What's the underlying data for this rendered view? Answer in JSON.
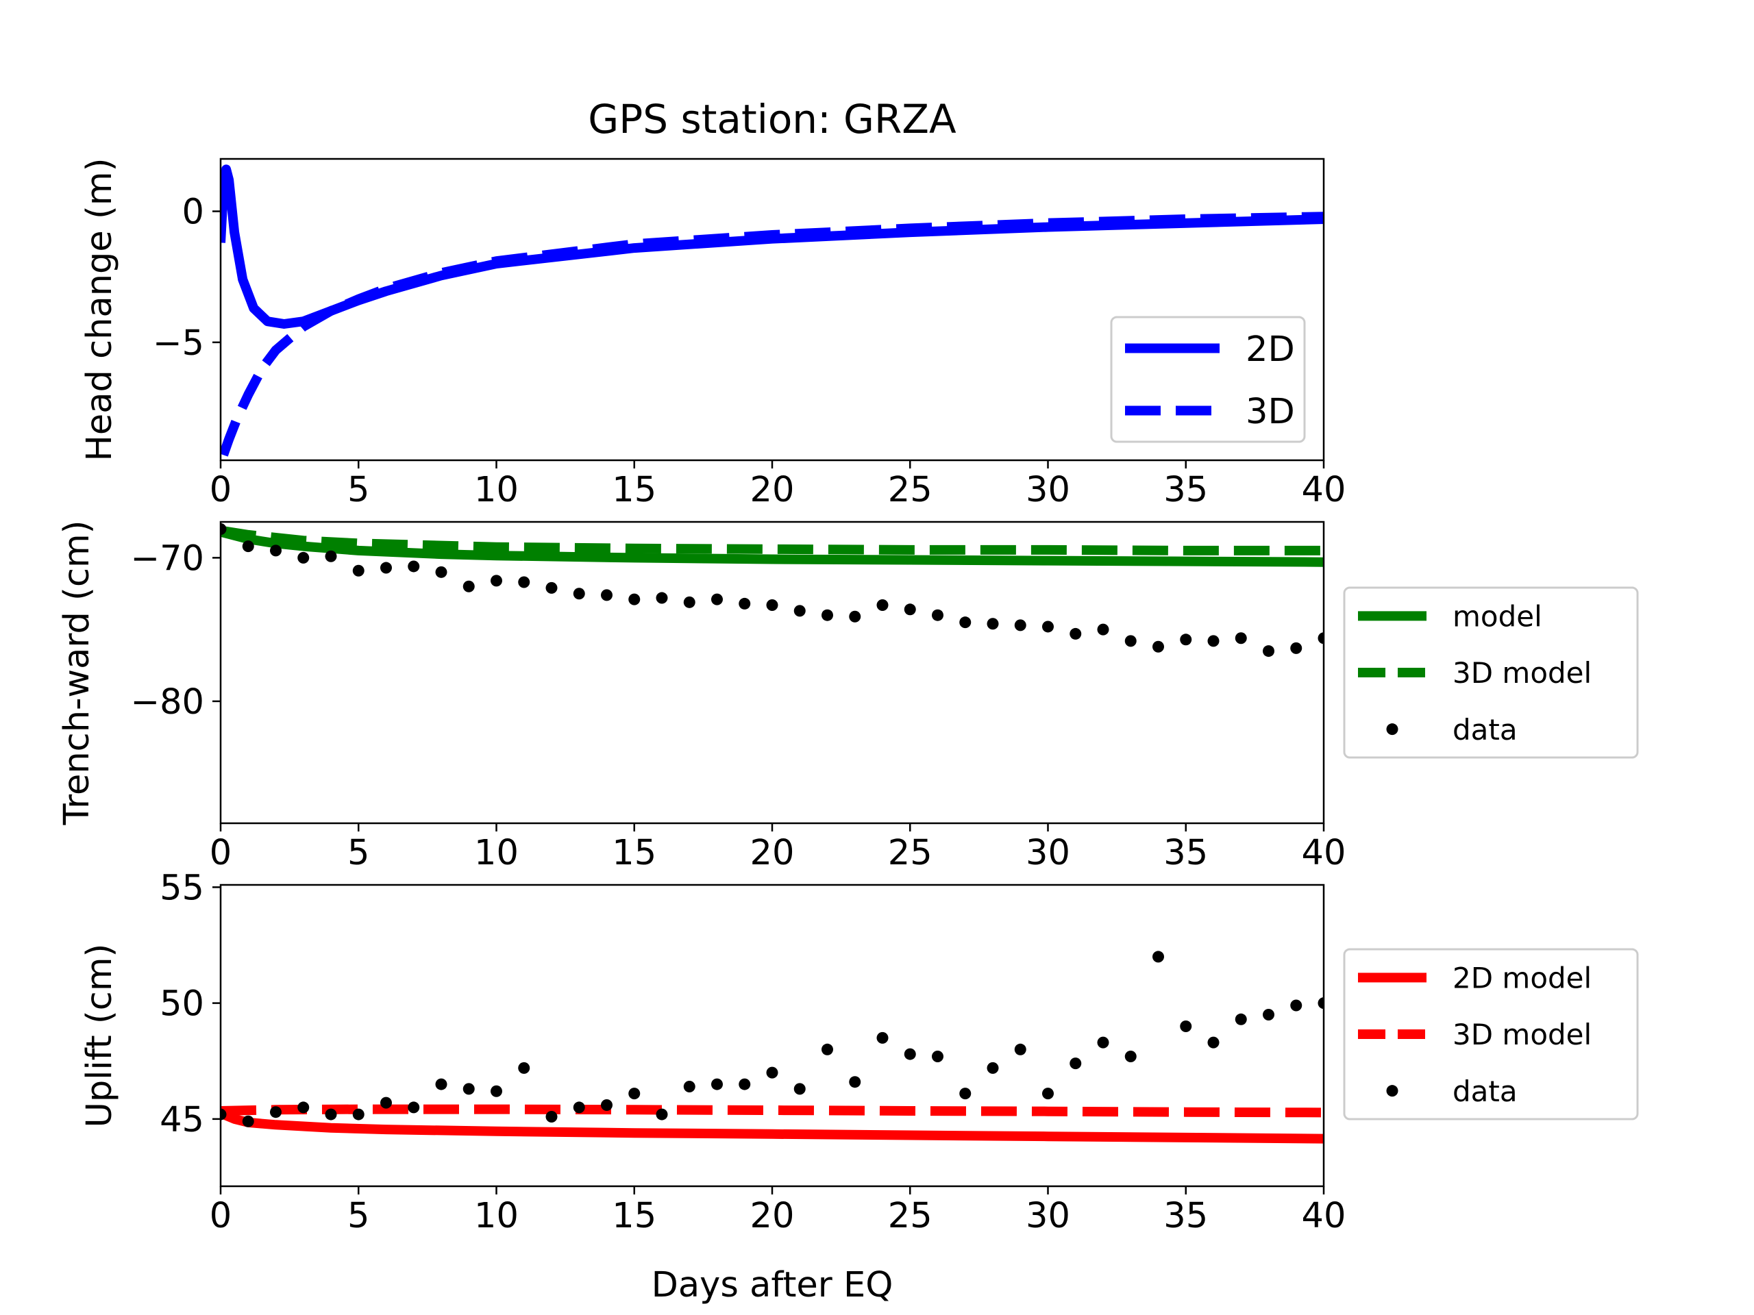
{
  "figure": {
    "title": "GPS station: GRZA",
    "xlabel": "Days after EQ"
  },
  "chart_data": [
    {
      "type": "line",
      "title": "GPS station: GRZA",
      "ylabel": "Head change (m)",
      "xlim": [
        0,
        40
      ],
      "ylim": [
        -9.5,
        2
      ],
      "x_ticks": [
        0,
        5,
        10,
        15,
        20,
        25,
        30,
        35,
        40
      ],
      "y_ticks": [
        0,
        -5
      ],
      "y_tick_labels": [
        "0",
        "−5"
      ],
      "legend_position": "lower-right",
      "series": [
        {
          "name": "2D",
          "color": "#0000ff",
          "style": "solid",
          "points": [
            [
              0,
              -1.2
            ],
            [
              0.1,
              0.8
            ],
            [
              0.2,
              1.6
            ],
            [
              0.3,
              1.2
            ],
            [
              0.5,
              -0.8
            ],
            [
              0.8,
              -2.6
            ],
            [
              1.2,
              -3.7
            ],
            [
              1.7,
              -4.2
            ],
            [
              2.3,
              -4.3
            ],
            [
              3,
              -4.2
            ],
            [
              4,
              -3.8
            ],
            [
              5,
              -3.4
            ],
            [
              6,
              -3.05
            ],
            [
              8,
              -2.45
            ],
            [
              10,
              -2.0
            ],
            [
              15,
              -1.4
            ],
            [
              20,
              -1.05
            ],
            [
              25,
              -0.8
            ],
            [
              30,
              -0.6
            ],
            [
              35,
              -0.45
            ],
            [
              40,
              -0.3
            ]
          ]
        },
        {
          "name": "3D",
          "color": "#0000ff",
          "style": "dashed",
          "points": [
            [
              0.1,
              -9.3
            ],
            [
              0.3,
              -8.7
            ],
            [
              0.6,
              -7.9
            ],
            [
              1,
              -7.0
            ],
            [
              1.5,
              -6.0
            ],
            [
              2,
              -5.3
            ],
            [
              3,
              -4.4
            ],
            [
              4,
              -3.8
            ],
            [
              5,
              -3.35
            ],
            [
              6,
              -2.95
            ],
            [
              8,
              -2.35
            ],
            [
              10,
              -1.9
            ],
            [
              15,
              -1.25
            ],
            [
              20,
              -0.9
            ],
            [
              25,
              -0.65
            ],
            [
              30,
              -0.45
            ],
            [
              35,
              -0.3
            ],
            [
              40,
              -0.2
            ]
          ]
        }
      ]
    },
    {
      "type": "line",
      "ylabel": "Trench-ward (cm)",
      "xlim": [
        0,
        40
      ],
      "ylim": [
        -88.5,
        -67.5
      ],
      "x_ticks": [
        0,
        5,
        10,
        15,
        20,
        25,
        30,
        35,
        40
      ],
      "y_ticks": [
        -70,
        -80
      ],
      "y_tick_labels": [
        "−70",
        "−80"
      ],
      "legend_position": "outside-right",
      "series": [
        {
          "name": "model",
          "color": "#008000",
          "style": "solid",
          "points": [
            [
              0,
              -68.2
            ],
            [
              1,
              -68.7
            ],
            [
              2,
              -69.0
            ],
            [
              3,
              -69.2
            ],
            [
              5,
              -69.5
            ],
            [
              8,
              -69.75
            ],
            [
              10,
              -69.85
            ],
            [
              15,
              -70.0
            ],
            [
              20,
              -70.1
            ],
            [
              25,
              -70.15
            ],
            [
              30,
              -70.2
            ],
            [
              35,
              -70.25
            ],
            [
              40,
              -70.3
            ]
          ]
        },
        {
          "name": "3D model",
          "color": "#008000",
          "style": "dashed",
          "points": [
            [
              0,
              -68.1
            ],
            [
              1,
              -68.4
            ],
            [
              2,
              -68.6
            ],
            [
              3,
              -68.8
            ],
            [
              5,
              -69.0
            ],
            [
              8,
              -69.15
            ],
            [
              10,
              -69.25
            ],
            [
              15,
              -69.35
            ],
            [
              20,
              -69.4
            ],
            [
              25,
              -69.45
            ],
            [
              30,
              -69.45
            ],
            [
              35,
              -69.5
            ],
            [
              40,
              -69.5
            ]
          ]
        },
        {
          "name": "data",
          "color": "#000000",
          "style": "markers",
          "points": [
            [
              0,
              -68.0
            ],
            [
              1,
              -69.2
            ],
            [
              2,
              -69.5
            ],
            [
              3,
              -70.0
            ],
            [
              4,
              -69.9
            ],
            [
              5,
              -70.9
            ],
            [
              6,
              -70.7
            ],
            [
              7,
              -70.6
            ],
            [
              8,
              -71.0
            ],
            [
              9,
              -72.0
            ],
            [
              10,
              -71.6
            ],
            [
              11,
              -71.7
            ],
            [
              12,
              -72.1
            ],
            [
              13,
              -72.5
            ],
            [
              14,
              -72.6
            ],
            [
              15,
              -72.9
            ],
            [
              16,
              -72.8
            ],
            [
              17,
              -73.1
            ],
            [
              18,
              -72.9
            ],
            [
              19,
              -73.2
            ],
            [
              20,
              -73.3
            ],
            [
              21,
              -73.7
            ],
            [
              22,
              -74.0
            ],
            [
              23,
              -74.1
            ],
            [
              24,
              -73.3
            ],
            [
              25,
              -73.6
            ],
            [
              26,
              -74.0
            ],
            [
              27,
              -74.5
            ],
            [
              28,
              -74.6
            ],
            [
              29,
              -74.7
            ],
            [
              30,
              -74.8
            ],
            [
              31,
              -75.3
            ],
            [
              32,
              -75.0
            ],
            [
              33,
              -75.8
            ],
            [
              34,
              -76.2
            ],
            [
              35,
              -75.7
            ],
            [
              36,
              -75.8
            ],
            [
              37,
              -75.6
            ],
            [
              38,
              -76.5
            ],
            [
              39,
              -76.3
            ],
            [
              40,
              -75.6
            ]
          ]
        }
      ]
    },
    {
      "type": "line",
      "ylabel": "Uplift (cm)",
      "xlim": [
        0,
        40
      ],
      "ylim": [
        42.1,
        55.1
      ],
      "x_ticks": [
        0,
        5,
        10,
        15,
        20,
        25,
        30,
        35,
        40
      ],
      "y_ticks": [
        45,
        50,
        55
      ],
      "y_tick_labels": [
        "45",
        "50",
        "55"
      ],
      "legend_position": "outside-right",
      "series": [
        {
          "name": "2D model",
          "color": "#ff0000",
          "style": "solid",
          "points": [
            [
              0,
              45.25
            ],
            [
              0.5,
              45.0
            ],
            [
              1,
              44.85
            ],
            [
              2,
              44.75
            ],
            [
              4,
              44.62
            ],
            [
              6,
              44.55
            ],
            [
              10,
              44.47
            ],
            [
              15,
              44.4
            ],
            [
              20,
              44.35
            ],
            [
              25,
              44.3
            ],
            [
              30,
              44.25
            ],
            [
              35,
              44.2
            ],
            [
              40,
              44.15
            ]
          ]
        },
        {
          "name": "3D model",
          "color": "#ff0000",
          "style": "dashed",
          "points": [
            [
              0,
              45.35
            ],
            [
              2,
              45.4
            ],
            [
              5,
              45.42
            ],
            [
              10,
              45.42
            ],
            [
              15,
              45.4
            ],
            [
              20,
              45.38
            ],
            [
              25,
              45.35
            ],
            [
              30,
              45.33
            ],
            [
              35,
              45.3
            ],
            [
              40,
              45.28
            ]
          ]
        },
        {
          "name": "data",
          "color": "#000000",
          "style": "markers",
          "points": [
            [
              0,
              45.2
            ],
            [
              1,
              44.9
            ],
            [
              2,
              45.3
            ],
            [
              3,
              45.5
            ],
            [
              4,
              45.2
            ],
            [
              5,
              45.2
            ],
            [
              6,
              45.7
            ],
            [
              7,
              45.5
            ],
            [
              8,
              46.5
            ],
            [
              9,
              46.3
            ],
            [
              10,
              46.2
            ],
            [
              11,
              47.2
            ],
            [
              12,
              45.1
            ],
            [
              13,
              45.5
            ],
            [
              14,
              45.6
            ],
            [
              15,
              46.1
            ],
            [
              16,
              45.2
            ],
            [
              17,
              46.4
            ],
            [
              18,
              46.5
            ],
            [
              19,
              46.5
            ],
            [
              20,
              47.0
            ],
            [
              21,
              46.3
            ],
            [
              22,
              48.0
            ],
            [
              23,
              46.6
            ],
            [
              24,
              48.5
            ],
            [
              25,
              47.8
            ],
            [
              26,
              47.7
            ],
            [
              27,
              46.1
            ],
            [
              28,
              47.2
            ],
            [
              29,
              48.0
            ],
            [
              30,
              46.1
            ],
            [
              31,
              47.4
            ],
            [
              32,
              48.3
            ],
            [
              33,
              47.7
            ],
            [
              34,
              52.0
            ],
            [
              35,
              49.0
            ],
            [
              36,
              48.3
            ],
            [
              37,
              49.3
            ],
            [
              38,
              49.5
            ],
            [
              39,
              49.9
            ],
            [
              40,
              50.0
            ]
          ]
        }
      ]
    }
  ]
}
